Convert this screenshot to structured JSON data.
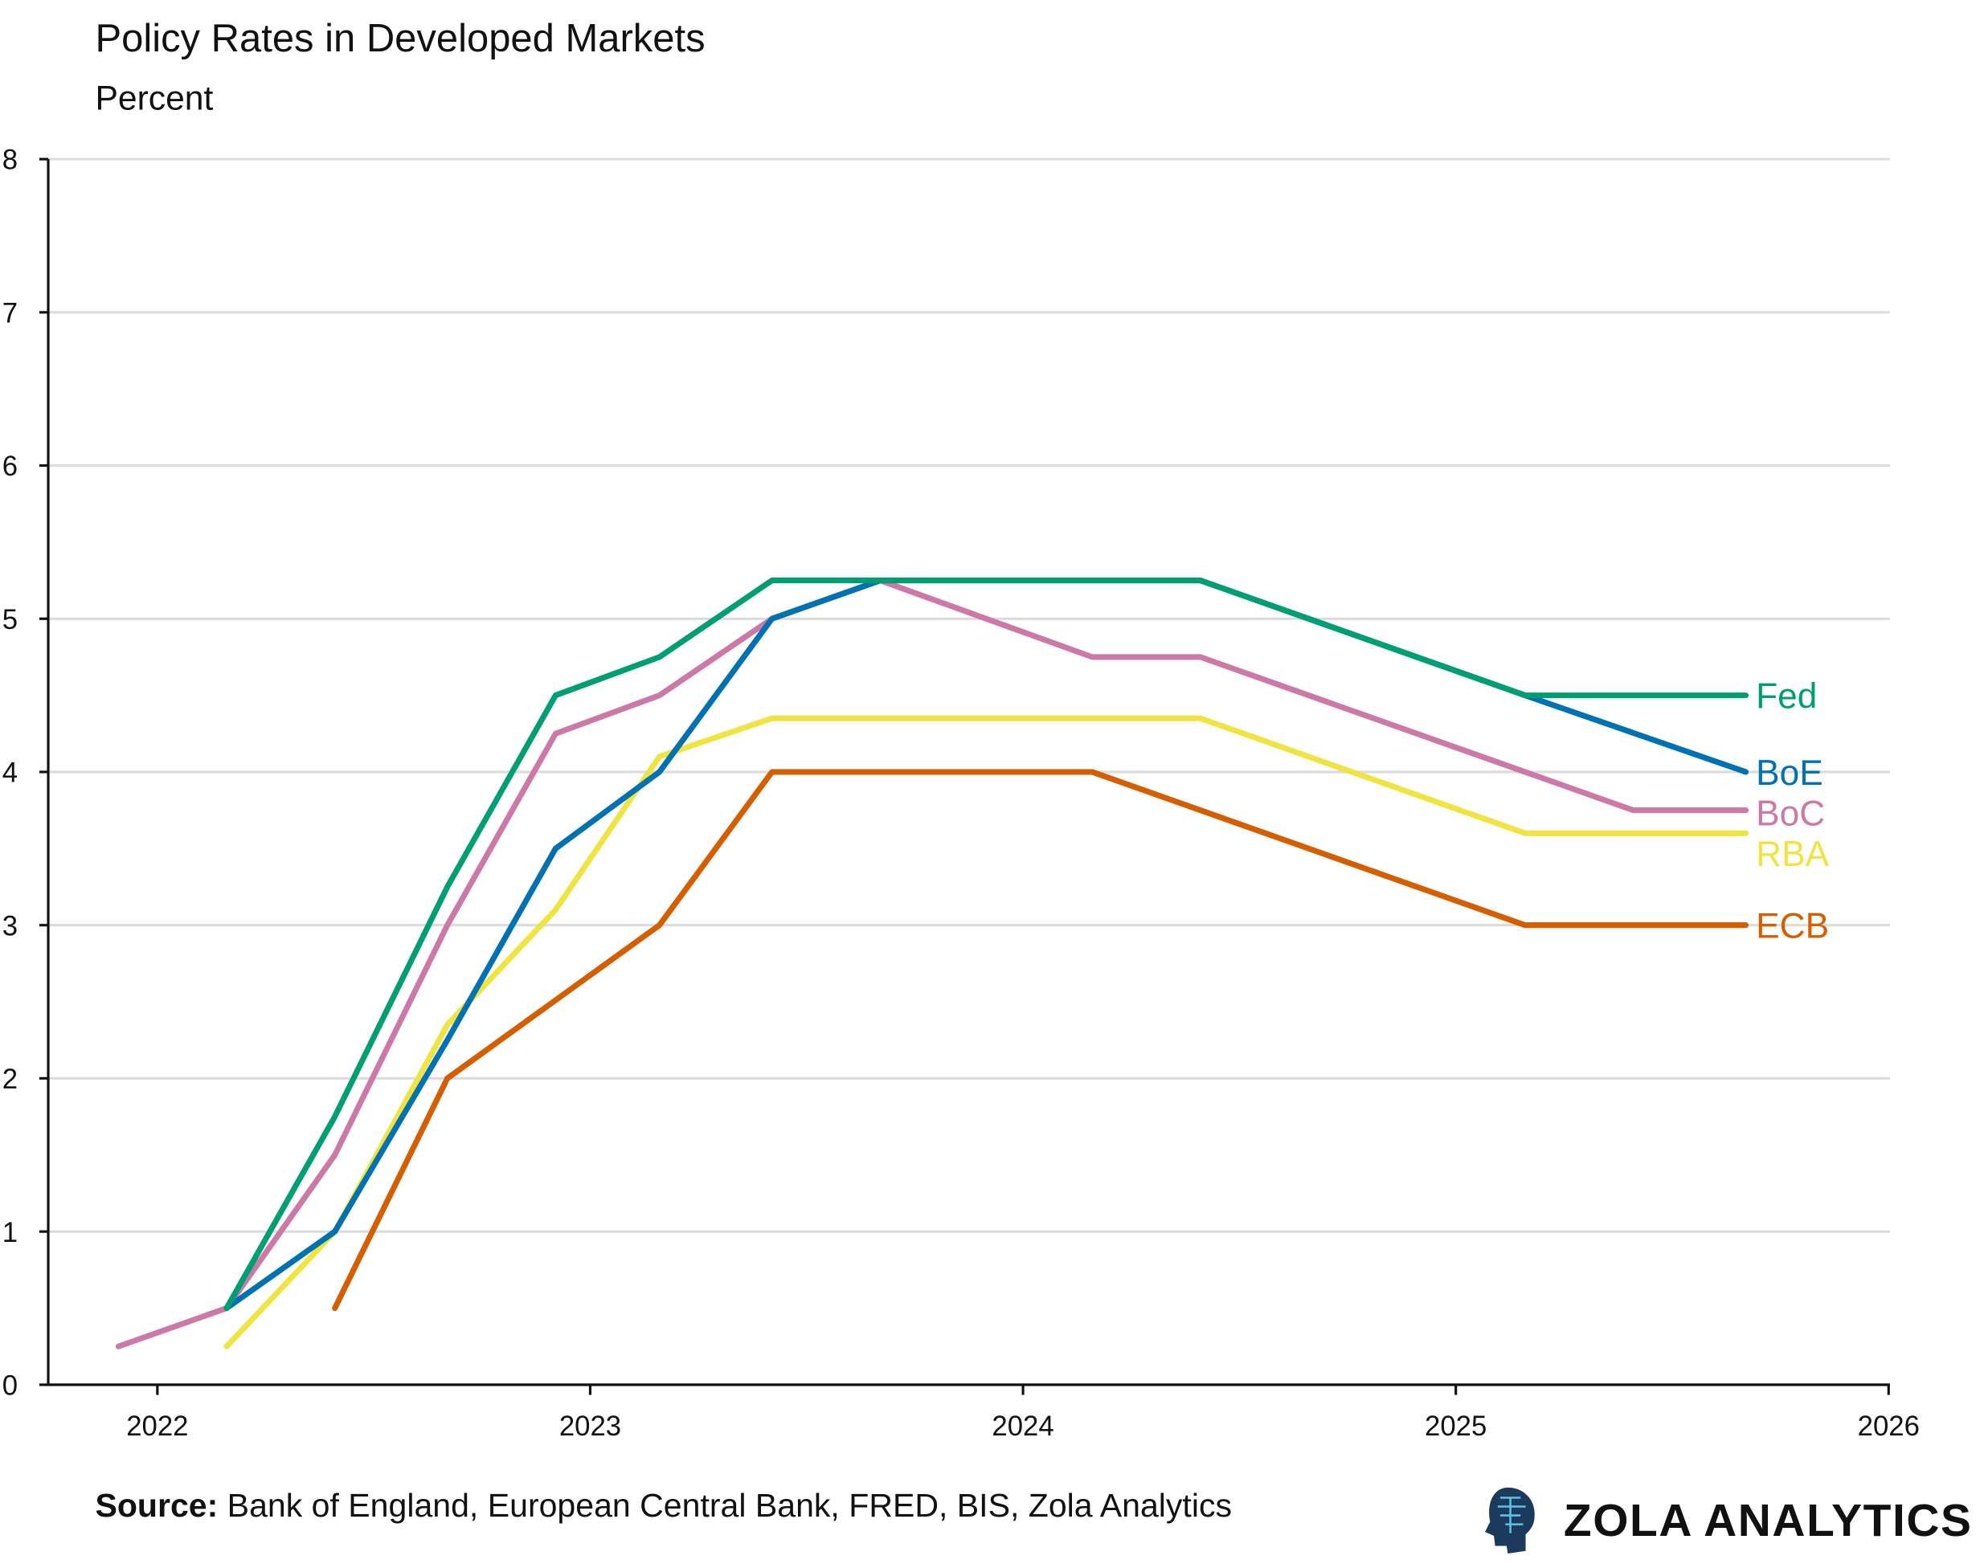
{
  "chart_data": {
    "type": "line",
    "title": "Policy Rates in Developed Markets",
    "subtitle": "Percent",
    "xlabel": "",
    "ylabel": "",
    "xlim": [
      2021.75,
      2026
    ],
    "ylim": [
      0,
      8
    ],
    "xticks": [
      2022,
      2023,
      2024,
      2025,
      2026
    ],
    "yticks": [
      0,
      1,
      2,
      3,
      4,
      5,
      6,
      7,
      8
    ],
    "grid": true,
    "legend": "direct labels at line ends",
    "series": [
      {
        "name": "Fed",
        "color": "#009E73",
        "x": [
          2022.16,
          2022.41,
          2022.67,
          2022.92,
          2023.16,
          2023.42,
          2023.67,
          2024.41,
          2025.16,
          2025.67
        ],
        "y": [
          0.5,
          1.75,
          3.25,
          4.5,
          4.75,
          5.25,
          5.25,
          5.25,
          4.5,
          4.5
        ]
      },
      {
        "name": "BoE",
        "color": "#0072B2",
        "x": [
          2022.16,
          2022.41,
          2022.67,
          2022.92,
          2023.16,
          2023.42,
          2023.67,
          2024.41,
          2025.16,
          2025.67
        ],
        "y": [
          0.5,
          1.0,
          2.25,
          3.5,
          4.0,
          5.0,
          5.25,
          5.25,
          4.5,
          4.0
        ]
      },
      {
        "name": "BoC",
        "color": "#CC79A7",
        "x": [
          2021.91,
          2022.16,
          2022.41,
          2022.67,
          2022.92,
          2023.16,
          2023.42,
          2023.67,
          2024.16,
          2024.41,
          2025.16,
          2025.41,
          2025.67
        ],
        "y": [
          0.25,
          0.5,
          1.5,
          3.0,
          4.25,
          4.5,
          5.0,
          5.25,
          4.75,
          4.75,
          4.0,
          3.75,
          3.75
        ]
      },
      {
        "name": "RBA",
        "color": "#F0E442",
        "x": [
          2022.16,
          2022.41,
          2022.67,
          2022.92,
          2023.16,
          2023.42,
          2024.41,
          2025.16,
          2025.67
        ],
        "y": [
          0.25,
          1.0,
          2.35,
          3.1,
          4.1,
          4.35,
          4.35,
          3.6,
          3.6
        ]
      },
      {
        "name": "ECB",
        "color": "#D55E00",
        "x": [
          2022.41,
          2022.67,
          2023.16,
          2023.42,
          2024.16,
          2025.16,
          2025.67
        ],
        "y": [
          0.5,
          2.0,
          3.0,
          4.0,
          4.0,
          3.0,
          3.0
        ]
      }
    ]
  },
  "footer": {
    "source_label": "Source:",
    "source_text": " Bank of England, European Central Bank, FRED, BIS, Zola Analytics",
    "logo_text": "ZOLA ANALYTICS"
  }
}
